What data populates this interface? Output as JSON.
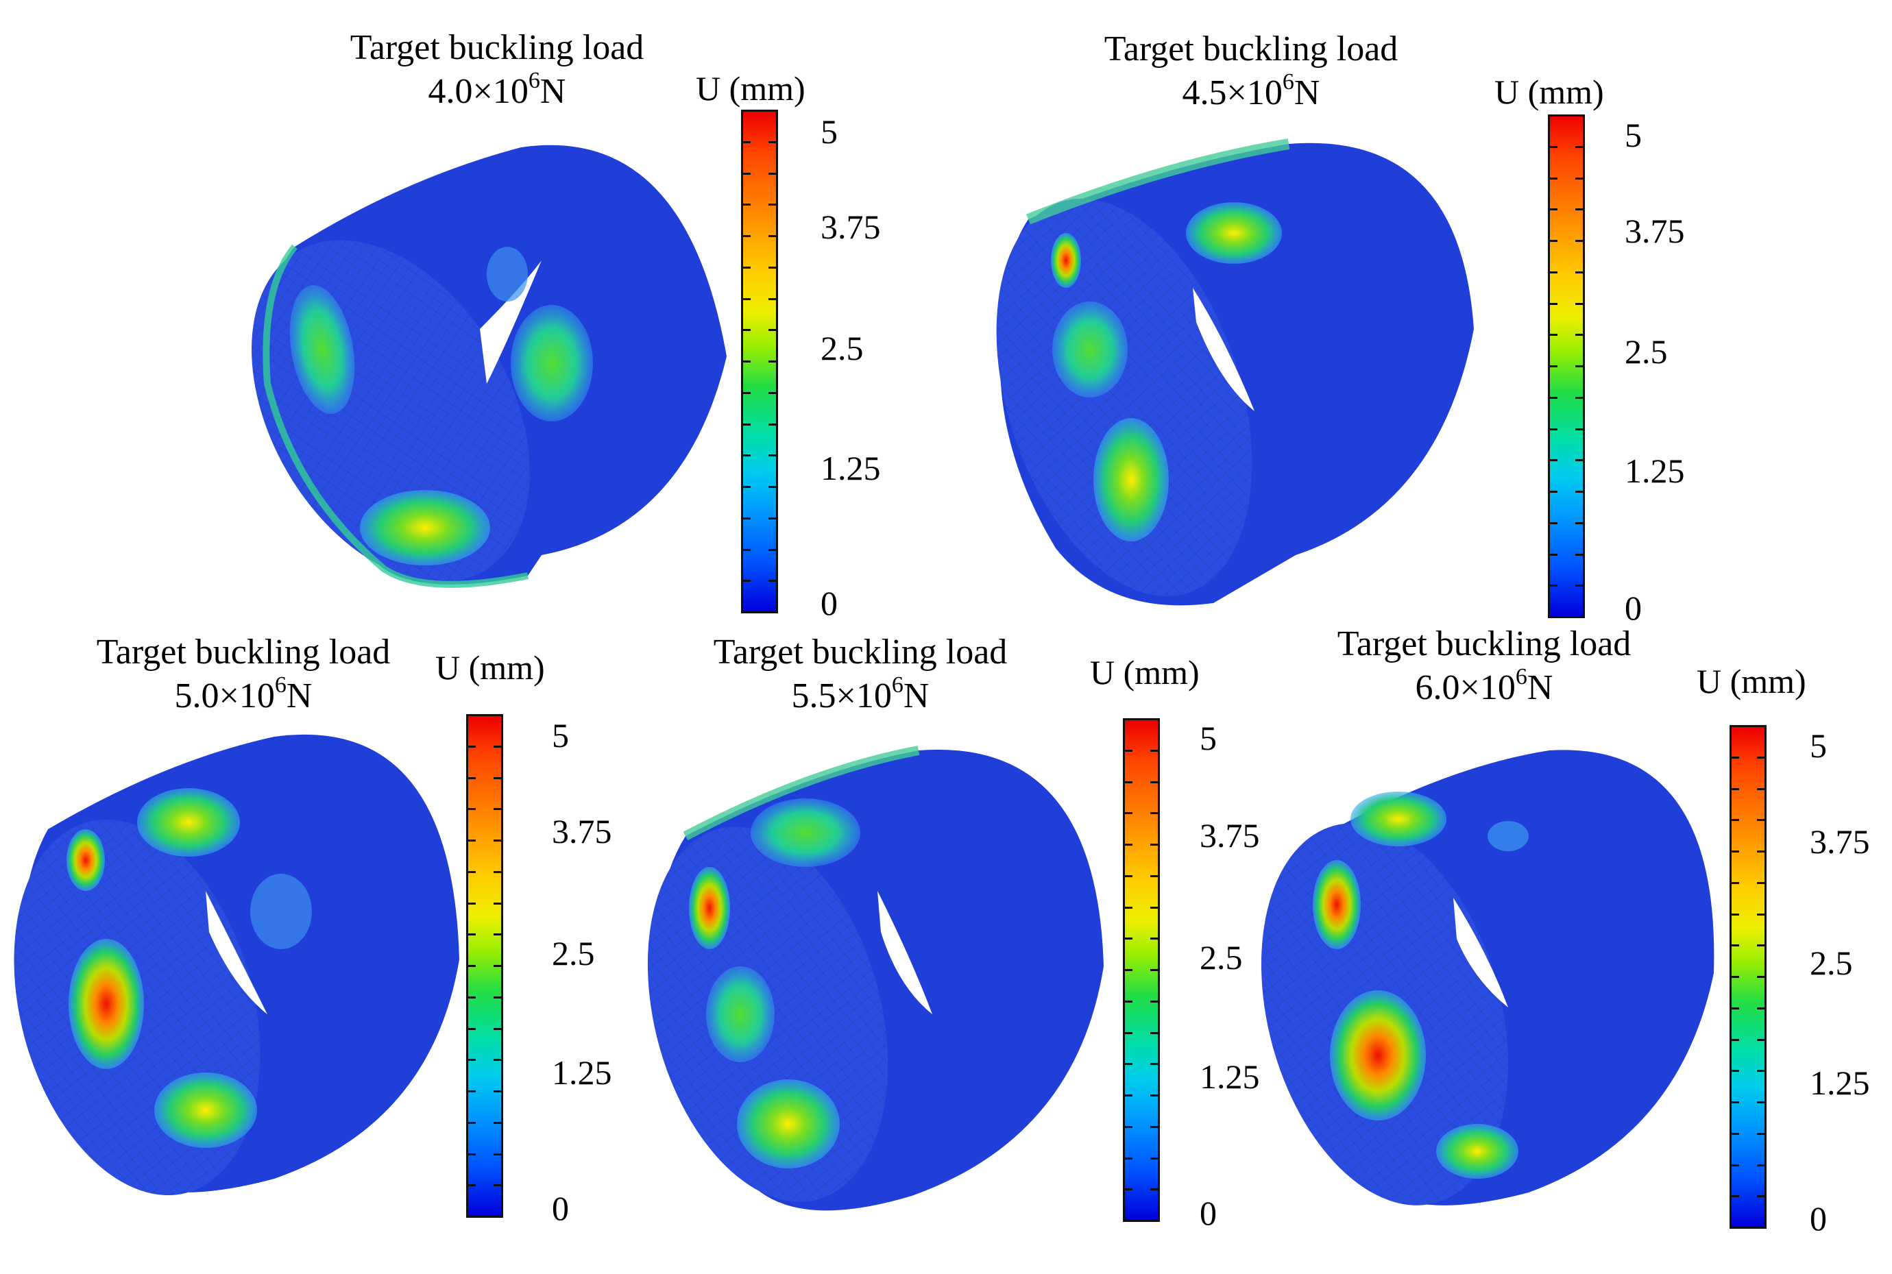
{
  "figure": {
    "colorbar": {
      "title": "U (mm)",
      "ticks": [
        "5",
        "3.75",
        "2.5",
        "1.25",
        "0"
      ],
      "colors": [
        "#ee0000",
        "#ff8800",
        "#eeee00",
        "#22dd44",
        "#00ccee",
        "#0055ff",
        "#0000dd"
      ]
    },
    "panels": [
      {
        "title_line1": "Target buckling  load",
        "load_mantissa": "4.0×10",
        "load_exp": "6",
        "load_unit": "N"
      },
      {
        "title_line1": "Target buckling  load",
        "load_mantissa": "4.5×10",
        "load_exp": "6",
        "load_unit": "N"
      },
      {
        "title_line1": "Target buckling  load",
        "load_mantissa": "5.0×10",
        "load_exp": "6",
        "load_unit": "N"
      },
      {
        "title_line1": "Target buckling  load",
        "load_mantissa": "5.5×10",
        "load_exp": "6",
        "load_unit": "N"
      },
      {
        "title_line1": "Target buckling  load",
        "load_mantissa": "6.0×10",
        "load_exp": "6",
        "load_unit": "N"
      }
    ]
  }
}
